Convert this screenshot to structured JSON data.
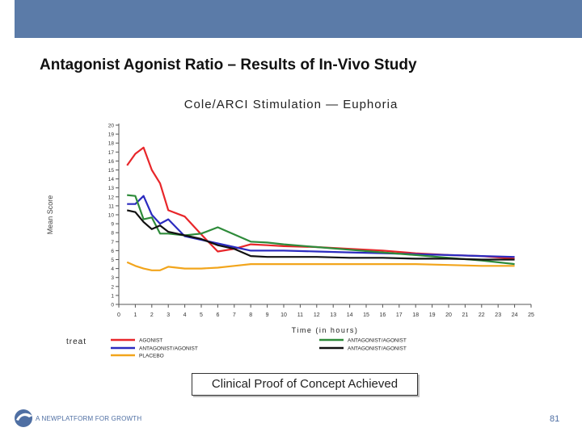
{
  "slide": {
    "title": "Antagonist Agonist Ratio – Results of In-Vivo Study",
    "callout": "Clinical Proof of Concept Achieved",
    "footer_text": "A NEWPLATFORM FOR GROWTH",
    "page_number": "81",
    "band_color": "#5b7ba8"
  },
  "chart_data": {
    "type": "line",
    "title": "Cole/ARCI Stimulation — Euphoria",
    "xlabel": "Time (in hours)",
    "ylabel": "Mean Score",
    "xlim": [
      0,
      25
    ],
    "ylim": [
      0,
      20
    ],
    "xticks": [
      0,
      1,
      2,
      3,
      4,
      5,
      6,
      7,
      8,
      9,
      10,
      11,
      12,
      13,
      14,
      15,
      16,
      17,
      18,
      19,
      20,
      21,
      22,
      23,
      24,
      25
    ],
    "yticks": [
      0,
      1,
      2,
      3,
      4,
      5,
      6,
      7,
      8,
      9,
      10,
      11,
      12,
      13,
      14,
      15,
      16,
      17,
      18,
      19,
      20
    ],
    "grid": false,
    "legend_title": "treat",
    "legend_placement": "bottom",
    "series": [
      {
        "name": "AGONIST",
        "color": "#e8262a",
        "x": [
          0.5,
          1,
          1.5,
          2,
          2.5,
          3,
          4,
          5,
          6,
          7,
          8,
          9,
          10,
          12,
          14,
          16,
          18,
          20,
          22,
          24
        ],
        "y": [
          15.5,
          16.8,
          17.5,
          15,
          13.5,
          10.5,
          9.8,
          7.8,
          5.9,
          6.2,
          6.7,
          6.6,
          6.5,
          6.4,
          6.2,
          6,
          5.7,
          5.5,
          5.4,
          5.1
        ]
      },
      {
        "name": "ANTAGONIST/AGONIST",
        "color": "#2b2bbf",
        "x": [
          0.5,
          1,
          1.5,
          2,
          2.5,
          3,
          4,
          5,
          6,
          7,
          8,
          9,
          10,
          12,
          14,
          16,
          18,
          20,
          22,
          24
        ],
        "y": [
          11.2,
          11.2,
          12.1,
          10,
          9,
          9.5,
          7.6,
          7.2,
          6.8,
          6.4,
          6,
          6,
          6,
          5.9,
          5.8,
          5.7,
          5.6,
          5.5,
          5.4,
          5.3
        ]
      },
      {
        "name": "PLACEBO",
        "color": "#f2a51c",
        "x": [
          0.5,
          1,
          1.5,
          2,
          2.5,
          3,
          4,
          5,
          6,
          7,
          8,
          9,
          10,
          12,
          14,
          16,
          18,
          20,
          22,
          24
        ],
        "y": [
          4.7,
          4.3,
          4,
          3.8,
          3.8,
          4.2,
          4,
          4,
          4.1,
          4.3,
          4.5,
          4.5,
          4.5,
          4.5,
          4.5,
          4.5,
          4.5,
          4.4,
          4.3,
          4.3
        ]
      },
      {
        "name": "ANTAGONIST/AGONIST",
        "color": "#2e8b3a",
        "x": [
          0.5,
          1,
          1.5,
          2,
          2.5,
          3,
          4,
          5,
          6,
          7,
          8,
          9,
          10,
          12,
          14,
          16,
          18,
          20,
          22,
          24
        ],
        "y": [
          12.2,
          12.1,
          9.5,
          9.7,
          7.9,
          7.9,
          7.7,
          7.9,
          8.6,
          7.8,
          7,
          6.9,
          6.7,
          6.4,
          6.1,
          5.8,
          5.5,
          5.2,
          4.9,
          4.5
        ]
      },
      {
        "name": "ANTAGONIST/AGONIST",
        "color": "#111111",
        "x": [
          0.5,
          1,
          1.5,
          2,
          2.5,
          3,
          4,
          5,
          6,
          7,
          8,
          9,
          10,
          12,
          14,
          16,
          18,
          20,
          22,
          24
        ],
        "y": [
          10.5,
          10.3,
          9.2,
          8.4,
          8.8,
          8.1,
          7.7,
          7.3,
          6.6,
          6.2,
          5.4,
          5.3,
          5.3,
          5.3,
          5.2,
          5.2,
          5.1,
          5.1,
          5,
          5
        ]
      }
    ]
  }
}
